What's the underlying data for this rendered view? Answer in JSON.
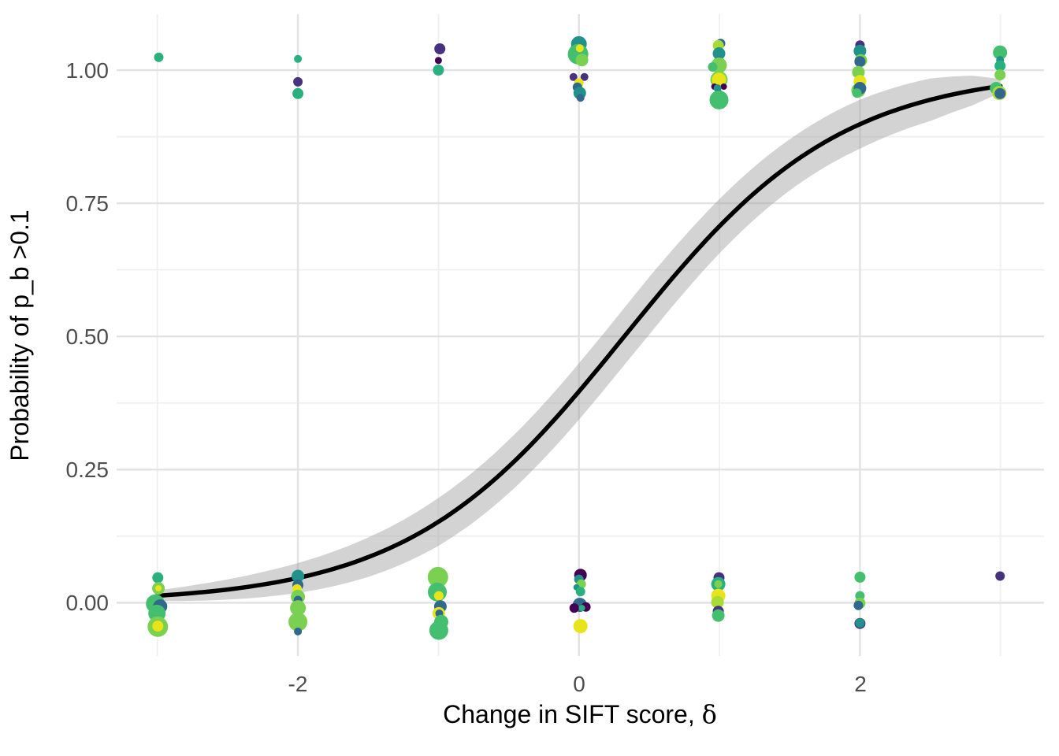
{
  "chart_data": {
    "type": "scatter",
    "title": "",
    "xlabel_text": "Change in SIFT score, ",
    "xlabel_symbol": "δ",
    "ylabel": "Probability of p_b >0.1",
    "legend": "none",
    "grid": true,
    "xlim": [
      -3.29,
      3.31
    ],
    "ylim": [
      -0.1,
      1.105
    ],
    "x_ticks": [
      {
        "value": -2,
        "label": "-2"
      },
      {
        "value": 0,
        "label": "0"
      },
      {
        "value": 2,
        "label": "2"
      }
    ],
    "y_ticks": [
      {
        "value": 1.0,
        "label": "1.00"
      },
      {
        "value": 0.75,
        "label": "0.75"
      },
      {
        "value": 0.5,
        "label": "0.50"
      },
      {
        "value": 0.25,
        "label": "0.25"
      },
      {
        "value": 0.0,
        "label": "0.00"
      }
    ],
    "x_minor_gridlines": [
      -3,
      -1,
      1,
      3
    ],
    "y_minor_gridlines": [
      0.125,
      0.375,
      0.625,
      0.875
    ],
    "fit_curve": {
      "model": "logistic",
      "intercept": -0.42,
      "slope": 1.3,
      "x_start": -3.0,
      "x_end": 3.0,
      "color": "#000000"
    },
    "ribbon": {
      "color": "#9e9e9e",
      "opacity": 0.45,
      "half_width_by_x": [
        [
          -3.0,
          0.01
        ],
        [
          -2.5,
          0.019
        ],
        [
          -2.0,
          0.028
        ],
        [
          -1.5,
          0.037
        ],
        [
          -1.0,
          0.045
        ],
        [
          -0.5,
          0.05
        ],
        [
          0.0,
          0.053
        ],
        [
          0.5,
          0.054
        ],
        [
          1.0,
          0.051
        ],
        [
          1.5,
          0.048
        ],
        [
          2.0,
          0.046
        ],
        [
          2.5,
          0.04
        ],
        [
          2.8,
          0.028
        ],
        [
          3.0,
          0.013
        ]
      ]
    },
    "palette": {
      "D": "#440154",
      "P": "#46327e",
      "N": "#31688e",
      "T": "#21918c",
      "S": "#2ab07f",
      "G": "#44bf70",
      "L": "#7ad151",
      "YG": "#a8db34",
      "Y": "#e7e419"
    },
    "points": [
      [
        -2.99,
        1.024,
        6,
        "S"
      ],
      [
        -2.0,
        1.021,
        5,
        "S"
      ],
      [
        -2.0,
        0.978,
        6,
        "P"
      ],
      [
        -2.0,
        0.956,
        7,
        "S"
      ],
      [
        -0.99,
        1.04,
        7,
        "P"
      ],
      [
        -1.0,
        1.018,
        4.5,
        "D"
      ],
      [
        -1.0,
        1.0,
        7,
        "S"
      ],
      [
        0.0,
        1.049,
        10,
        "T"
      ],
      [
        -0.006,
        1.03,
        13,
        "G"
      ],
      [
        0.022,
        1.019,
        8,
        "L"
      ],
      [
        0.006,
        1.041,
        5,
        "Y"
      ],
      [
        -0.039,
        0.987,
        5,
        "P"
      ],
      [
        0.039,
        0.987,
        5,
        "P"
      ],
      [
        0.0,
        0.976,
        6,
        "Y"
      ],
      [
        -0.011,
        0.968,
        6,
        "N"
      ],
      [
        0.006,
        0.957,
        8,
        "T"
      ],
      [
        0.011,
        0.948,
        5,
        "N"
      ],
      [
        1.008,
        1.05,
        6,
        "N"
      ],
      [
        0.992,
        1.046,
        7,
        "YG"
      ],
      [
        0.997,
        1.031,
        8,
        "T"
      ],
      [
        0.997,
        1.013,
        8,
        "N"
      ],
      [
        0.997,
        1.009,
        10,
        "L"
      ],
      [
        0.952,
        1.006,
        6,
        "G"
      ],
      [
        0.997,
        0.982,
        11,
        "L"
      ],
      [
        0.997,
        0.982,
        9,
        "Y"
      ],
      [
        0.964,
        0.969,
        4,
        "D"
      ],
      [
        1.031,
        0.969,
        4,
        "D"
      ],
      [
        0.986,
        0.966,
        5,
        "T"
      ],
      [
        0.997,
        0.954,
        6,
        "N"
      ],
      [
        0.997,
        0.944,
        12,
        "G"
      ],
      [
        2.0,
        1.047,
        6,
        "P"
      ],
      [
        2.0,
        1.036,
        8,
        "T"
      ],
      [
        2.006,
        1.018,
        8,
        "L"
      ],
      [
        2.0,
        1.016,
        7,
        "N"
      ],
      [
        1.989,
        0.996,
        8,
        "L"
      ],
      [
        2.0,
        0.979,
        8,
        "Y"
      ],
      [
        1.989,
        0.962,
        9,
        "L"
      ],
      [
        2.0,
        0.966,
        8,
        "N"
      ],
      [
        1.978,
        0.957,
        6,
        "G"
      ],
      [
        2.997,
        1.033,
        9,
        "G"
      ],
      [
        2.997,
        1.019,
        5,
        "T"
      ],
      [
        2.997,
        1.008,
        7,
        "S"
      ],
      [
        2.997,
        0.991,
        7,
        "L"
      ],
      [
        2.969,
        0.966,
        8,
        "G"
      ],
      [
        2.992,
        0.957,
        9,
        "YG"
      ],
      [
        2.997,
        0.956,
        7,
        "N"
      ],
      [
        -2.997,
        0.047,
        7,
        "S"
      ],
      [
        -2.992,
        0.027,
        8,
        "L"
      ],
      [
        -2.992,
        0.027,
        4,
        "Y"
      ],
      [
        -3.014,
        -0.002,
        12,
        "G"
      ],
      [
        -2.98,
        -0.007,
        9,
        "N"
      ],
      [
        -3.003,
        -0.02,
        11,
        "G"
      ],
      [
        -2.997,
        -0.045,
        13,
        "L"
      ],
      [
        -2.997,
        -0.044,
        7,
        "Y"
      ],
      [
        -2.0,
        0.05,
        8,
        "T"
      ],
      [
        -2.0,
        0.033,
        7,
        "N"
      ],
      [
        -2.006,
        0.026,
        6,
        "Y"
      ],
      [
        -2.0,
        0.011,
        9,
        "L"
      ],
      [
        -2.0,
        0.005,
        5.5,
        "N"
      ],
      [
        -2.0,
        -0.01,
        10,
        "L"
      ],
      [
        -2.0,
        -0.036,
        12,
        "L"
      ],
      [
        -2.0,
        -0.054,
        5,
        "N"
      ],
      [
        -1.003,
        0.048,
        13,
        "L"
      ],
      [
        -1.008,
        0.02,
        12,
        "G"
      ],
      [
        -0.997,
        0.013,
        6,
        "Y"
      ],
      [
        -0.986,
        -0.007,
        8,
        "N"
      ],
      [
        -0.997,
        -0.02,
        8,
        "Y"
      ],
      [
        -0.994,
        -0.02,
        5,
        "N"
      ],
      [
        -0.98,
        -0.036,
        9,
        "G"
      ],
      [
        -0.975,
        -0.044,
        5,
        "N"
      ],
      [
        -0.997,
        -0.052,
        12,
        "G"
      ],
      [
        0.011,
        0.052,
        8,
        "D"
      ],
      [
        0.0,
        0.044,
        6,
        "T"
      ],
      [
        0.017,
        0.035,
        6,
        "L"
      ],
      [
        -0.017,
        0.029,
        4,
        "T"
      ],
      [
        0.011,
        0.021,
        6,
        "S"
      ],
      [
        0.006,
        -0.004,
        9,
        "N"
      ],
      [
        -0.034,
        -0.01,
        6,
        "D"
      ],
      [
        0.05,
        -0.008,
        6,
        "D"
      ],
      [
        0.022,
        -0.01,
        4,
        "S"
      ],
      [
        0.011,
        -0.044,
        9,
        "Y"
      ],
      [
        0.997,
        0.047,
        7,
        "P"
      ],
      [
        0.992,
        0.035,
        9,
        "S"
      ],
      [
        0.992,
        0.035,
        5,
        "L"
      ],
      [
        0.992,
        0.013,
        9,
        "Y"
      ],
      [
        0.986,
        0.001,
        8,
        "YG"
      ],
      [
        0.992,
        -0.016,
        7,
        "P"
      ],
      [
        0.992,
        -0.024,
        8,
        "G"
      ],
      [
        2.0,
        0.048,
        7,
        "G"
      ],
      [
        2.0,
        0.013,
        6,
        "G"
      ],
      [
        2.0,
        -0.001,
        7,
        "L"
      ],
      [
        1.989,
        -0.005,
        6,
        "N"
      ],
      [
        2.0,
        -0.039,
        7,
        "P"
      ],
      [
        2.0,
        -0.038,
        6,
        "T"
      ],
      [
        2.997,
        0.05,
        6,
        "P"
      ]
    ]
  }
}
